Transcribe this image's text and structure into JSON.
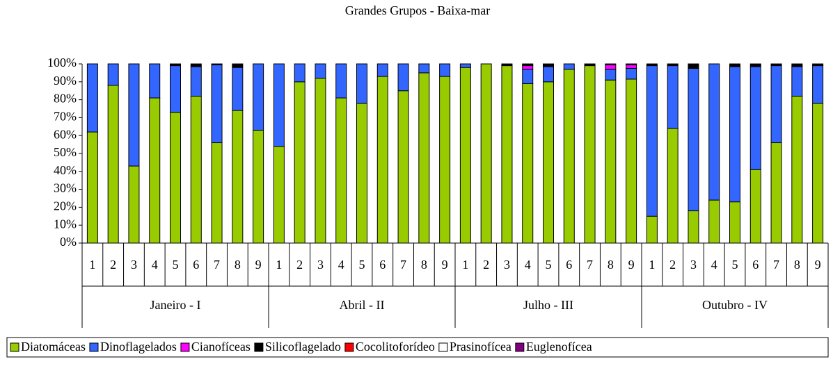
{
  "chart_data": {
    "type": "stacked_bar",
    "title": "Grandes Grupos - Baixa-mar",
    "categories": [
      "1",
      "2",
      "3",
      "4",
      "5",
      "6",
      "7",
      "8",
      "9",
      "1",
      "2",
      "3",
      "4",
      "5",
      "6",
      "7",
      "8",
      "9",
      "1",
      "2",
      "3",
      "4",
      "5",
      "6",
      "7",
      "8",
      "9",
      "1",
      "2",
      "3",
      "4",
      "5",
      "6",
      "7",
      "8",
      "9"
    ],
    "groups": [
      "Janeiro - I",
      "Abril - II",
      "Julho - III",
      "Outubro - IV"
    ],
    "series": [
      {
        "name": "Diatomáceas",
        "color": "#99cc00",
        "values": [
          62,
          88,
          43,
          81,
          73,
          82,
          56,
          74,
          63,
          54,
          90,
          92,
          81,
          78,
          93,
          85,
          95,
          93,
          98,
          100,
          99,
          89,
          90,
          97,
          99,
          91,
          91.5,
          15,
          64,
          18,
          24,
          23,
          41,
          56,
          82,
          78
        ]
      },
      {
        "name": "Dinoflagelados",
        "color": "#3366ff",
        "values": [
          38,
          12,
          57,
          19,
          26,
          16.5,
          43.5,
          24,
          37,
          46,
          10,
          8,
          19,
          22,
          7,
          15,
          5,
          7,
          2,
          0,
          0,
          8,
          8.5,
          3,
          0,
          6,
          6,
          84,
          35,
          79.5,
          76,
          75.5,
          57.5,
          43,
          16.5,
          21
        ]
      },
      {
        "name": "Cianofíceas",
        "color": "#ff00ff",
        "values": [
          0,
          0,
          0,
          0,
          0,
          0,
          0,
          0,
          0,
          0,
          0,
          0,
          0,
          0,
          0,
          0,
          0,
          0,
          0,
          0,
          0,
          2,
          0,
          0,
          0,
          2.5,
          2,
          0,
          0,
          0,
          0,
          0,
          0,
          0,
          0,
          0
        ]
      },
      {
        "name": "Silicoflagelado",
        "color": "#000000",
        "values": [
          0,
          0,
          0,
          0,
          1,
          1.5,
          0.5,
          2,
          0,
          0,
          0,
          0,
          0,
          0,
          0,
          0,
          0,
          0,
          0,
          0,
          1,
          1,
          1.5,
          0,
          1,
          0.5,
          0.5,
          1,
          1,
          2.5,
          0,
          1.5,
          1.5,
          1,
          1.5,
          1
        ]
      },
      {
        "name": "Cocolitoforídeo",
        "color": "#ff0000",
        "values": [
          0,
          0,
          0,
          0,
          0,
          0,
          0,
          0,
          0,
          0,
          0,
          0,
          0,
          0,
          0,
          0,
          0,
          0,
          0,
          0,
          0,
          0,
          0,
          0,
          0,
          0,
          0,
          0,
          0,
          0,
          0,
          0,
          0,
          0,
          0,
          0
        ]
      },
      {
        "name": "Prasinofícea",
        "color": "#ffffff",
        "values": [
          0,
          0,
          0,
          0,
          0,
          0,
          0,
          0,
          0,
          0,
          0,
          0,
          0,
          0,
          0,
          0,
          0,
          0,
          0,
          0,
          0,
          0,
          0,
          0,
          0,
          0,
          0,
          0,
          0,
          0,
          0,
          0,
          0,
          0,
          0,
          0
        ]
      },
      {
        "name": "Euglenofícea",
        "color": "#800080",
        "values": [
          0,
          0,
          0,
          0,
          0,
          0,
          0,
          0,
          0,
          0,
          0,
          0,
          0,
          0,
          0,
          0,
          0,
          0,
          0,
          0,
          0,
          0,
          0,
          0,
          0,
          0,
          0,
          0,
          0,
          0,
          0,
          0,
          0,
          0,
          0,
          0
        ]
      }
    ],
    "ylim": [
      0,
      100
    ],
    "yticks": [
      {
        "value": 0,
        "label": "0%"
      },
      {
        "value": 10,
        "label": "10%"
      },
      {
        "value": 20,
        "label": "20%"
      },
      {
        "value": 30,
        "label": "30%"
      },
      {
        "value": 40,
        "label": "40%"
      },
      {
        "value": 50,
        "label": "50%"
      },
      {
        "value": 60,
        "label": "60%"
      },
      {
        "value": 70,
        "label": "70%"
      },
      {
        "value": 80,
        "label": "80%"
      },
      {
        "value": 90,
        "label": "90%"
      },
      {
        "value": 100,
        "label": "100%"
      }
    ],
    "legend": "bottom"
  }
}
